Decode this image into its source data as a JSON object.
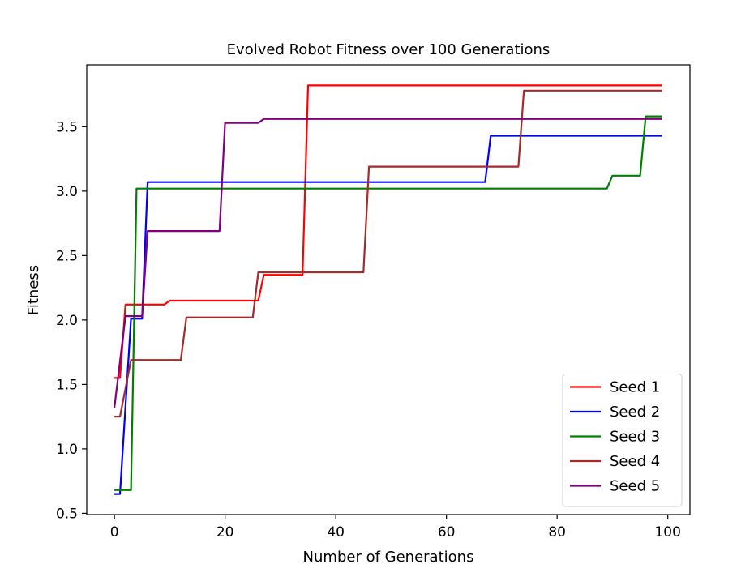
{
  "chart_data": {
    "type": "line",
    "title": "Evolved Robot Fitness over 100 Generations",
    "xlabel": "Number of Generations",
    "ylabel": "Fitness",
    "xlim": [
      -5,
      104
    ],
    "ylim": [
      0.49,
      3.98
    ],
    "xticks": [
      0,
      20,
      40,
      60,
      80,
      100
    ],
    "xtick_labels": [
      "0",
      "20",
      "40",
      "60",
      "80",
      "100"
    ],
    "yticks": [
      0.5,
      1.0,
      1.5,
      2.0,
      2.5,
      3.0,
      3.5
    ],
    "ytick_labels": [
      "0.5",
      "1.0",
      "1.5",
      "2.0",
      "2.5",
      "3.0",
      "3.5"
    ],
    "grid": false,
    "legend_position": "lower-right",
    "series": [
      {
        "name": "Seed 1",
        "color": "#ff0000",
        "points": [
          [
            0,
            1.55
          ],
          [
            1,
            1.55
          ],
          [
            2,
            2.12
          ],
          [
            9,
            2.12
          ],
          [
            10,
            2.15
          ],
          [
            26,
            2.15
          ],
          [
            27,
            2.35
          ],
          [
            34,
            2.35
          ],
          [
            35,
            3.82
          ],
          [
            99,
            3.82
          ]
        ]
      },
      {
        "name": "Seed 2",
        "color": "#0000ff",
        "points": [
          [
            0,
            0.65
          ],
          [
            1,
            0.65
          ],
          [
            3,
            2.01
          ],
          [
            5,
            2.01
          ],
          [
            6,
            3.07
          ],
          [
            67,
            3.07
          ],
          [
            68,
            3.43
          ],
          [
            99,
            3.43
          ]
        ]
      },
      {
        "name": "Seed 3",
        "color": "#008000",
        "points": [
          [
            0,
            0.68
          ],
          [
            3,
            0.68
          ],
          [
            4,
            3.02
          ],
          [
            89,
            3.02
          ],
          [
            90,
            3.12
          ],
          [
            95,
            3.12
          ],
          [
            96,
            3.58
          ],
          [
            99,
            3.58
          ]
        ]
      },
      {
        "name": "Seed 4",
        "color": "#a52a2a",
        "points": [
          [
            0,
            1.25
          ],
          [
            1,
            1.25
          ],
          [
            3,
            1.69
          ],
          [
            12,
            1.69
          ],
          [
            13,
            2.02
          ],
          [
            25,
            2.02
          ],
          [
            26,
            2.37
          ],
          [
            45,
            2.37
          ],
          [
            46,
            3.19
          ],
          [
            73,
            3.19
          ],
          [
            74,
            3.78
          ],
          [
            99,
            3.78
          ]
        ]
      },
      {
        "name": "Seed 5",
        "color": "#800080",
        "points": [
          [
            0,
            1.32
          ],
          [
            2,
            2.03
          ],
          [
            5,
            2.03
          ],
          [
            6,
            2.69
          ],
          [
            19,
            2.69
          ],
          [
            20,
            3.53
          ],
          [
            26,
            3.53
          ],
          [
            27,
            3.56
          ],
          [
            99,
            3.56
          ]
        ]
      }
    ]
  }
}
